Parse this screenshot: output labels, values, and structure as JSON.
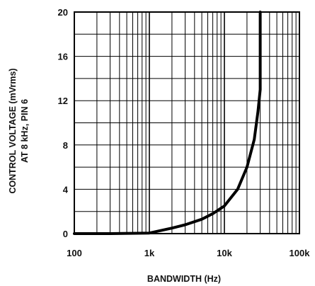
{
  "chart_data": {
    "type": "line",
    "title": "",
    "xlabel": "BANDWIDTH (Hz)",
    "ylabel_lines": [
      "CONTROL VOLTAGE (mVrms)",
      "AT 8 kHz, PIN 6"
    ],
    "x_scale": "log",
    "xlim": [
      100,
      100000
    ],
    "ylim": [
      0,
      20
    ],
    "x_ticks": [
      100,
      1000,
      10000,
      100000
    ],
    "x_tick_labels": [
      "100",
      "1k",
      "10k",
      "100k"
    ],
    "y_ticks": [
      0,
      4,
      8,
      12,
      16,
      20
    ],
    "y_tick_labels": [
      "0",
      "4",
      "8",
      "12",
      "16",
      "20"
    ],
    "grid": true,
    "series": [
      {
        "x": [
          100,
          300,
          1000,
          2000,
          3000,
          5000,
          7000,
          10000,
          15000,
          20000,
          25000,
          28000,
          30000,
          30000
        ],
        "y": [
          0,
          0,
          0.05,
          0.5,
          0.8,
          1.3,
          1.8,
          2.5,
          4.0,
          6.0,
          8.5,
          11.0,
          13.0,
          20.0
        ]
      }
    ]
  }
}
